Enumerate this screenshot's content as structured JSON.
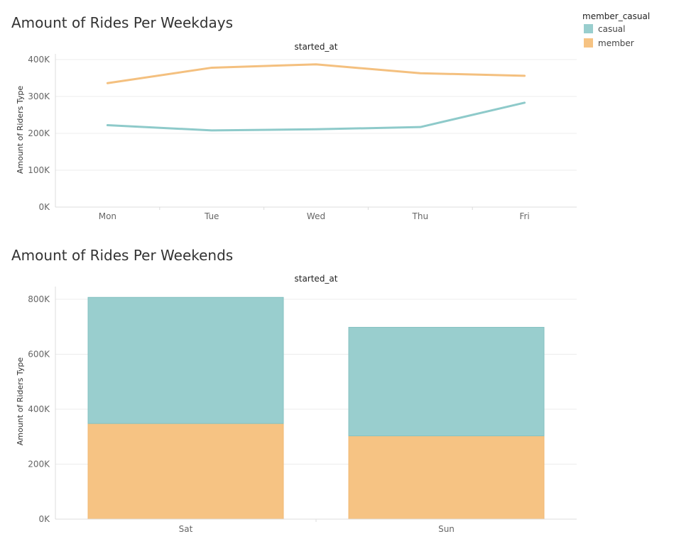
{
  "legend": {
    "title": "member_casual",
    "items": [
      {
        "label": "casual",
        "color": "#99cece"
      },
      {
        "label": "member",
        "color": "#f6c383"
      }
    ]
  },
  "chart_data": [
    {
      "type": "line",
      "title": "Amount of Rides Per Weekdays",
      "header": "started_at",
      "ylabel": "Amount of Riders Type",
      "categories": [
        "Mon",
        "Tue",
        "Wed",
        "Thu",
        "Fri"
      ],
      "ylim": [
        0,
        400000
      ],
      "yticks": [
        0,
        100000,
        200000,
        300000,
        400000
      ],
      "ytick_labels": [
        "0K",
        "100K",
        "200K",
        "300K",
        "400K"
      ],
      "grid": true,
      "series": [
        {
          "name": "casual",
          "color": "#8ecaca",
          "values": [
            222000,
            208000,
            211000,
            217000,
            283000
          ]
        },
        {
          "name": "member",
          "color": "#f4c07f",
          "values": [
            336000,
            378000,
            387000,
            363000,
            356000
          ]
        }
      ]
    },
    {
      "type": "bar",
      "stacked": true,
      "title": "Amount of Rides Per Weekends",
      "header": "started_at",
      "ylabel": "Amount of Riders Type",
      "categories": [
        "Sat",
        "Sun"
      ],
      "ylim": [
        0,
        800000
      ],
      "yticks": [
        0,
        200000,
        400000,
        600000,
        800000
      ],
      "ytick_labels": [
        "0K",
        "200K",
        "400K",
        "600K",
        "800K"
      ],
      "grid": true,
      "series": [
        {
          "name": "member",
          "color": "#f6c383",
          "values": [
            348000,
            303000
          ]
        },
        {
          "name": "casual",
          "color": "#99cece",
          "values": [
            459000,
            395000
          ]
        }
      ]
    }
  ]
}
